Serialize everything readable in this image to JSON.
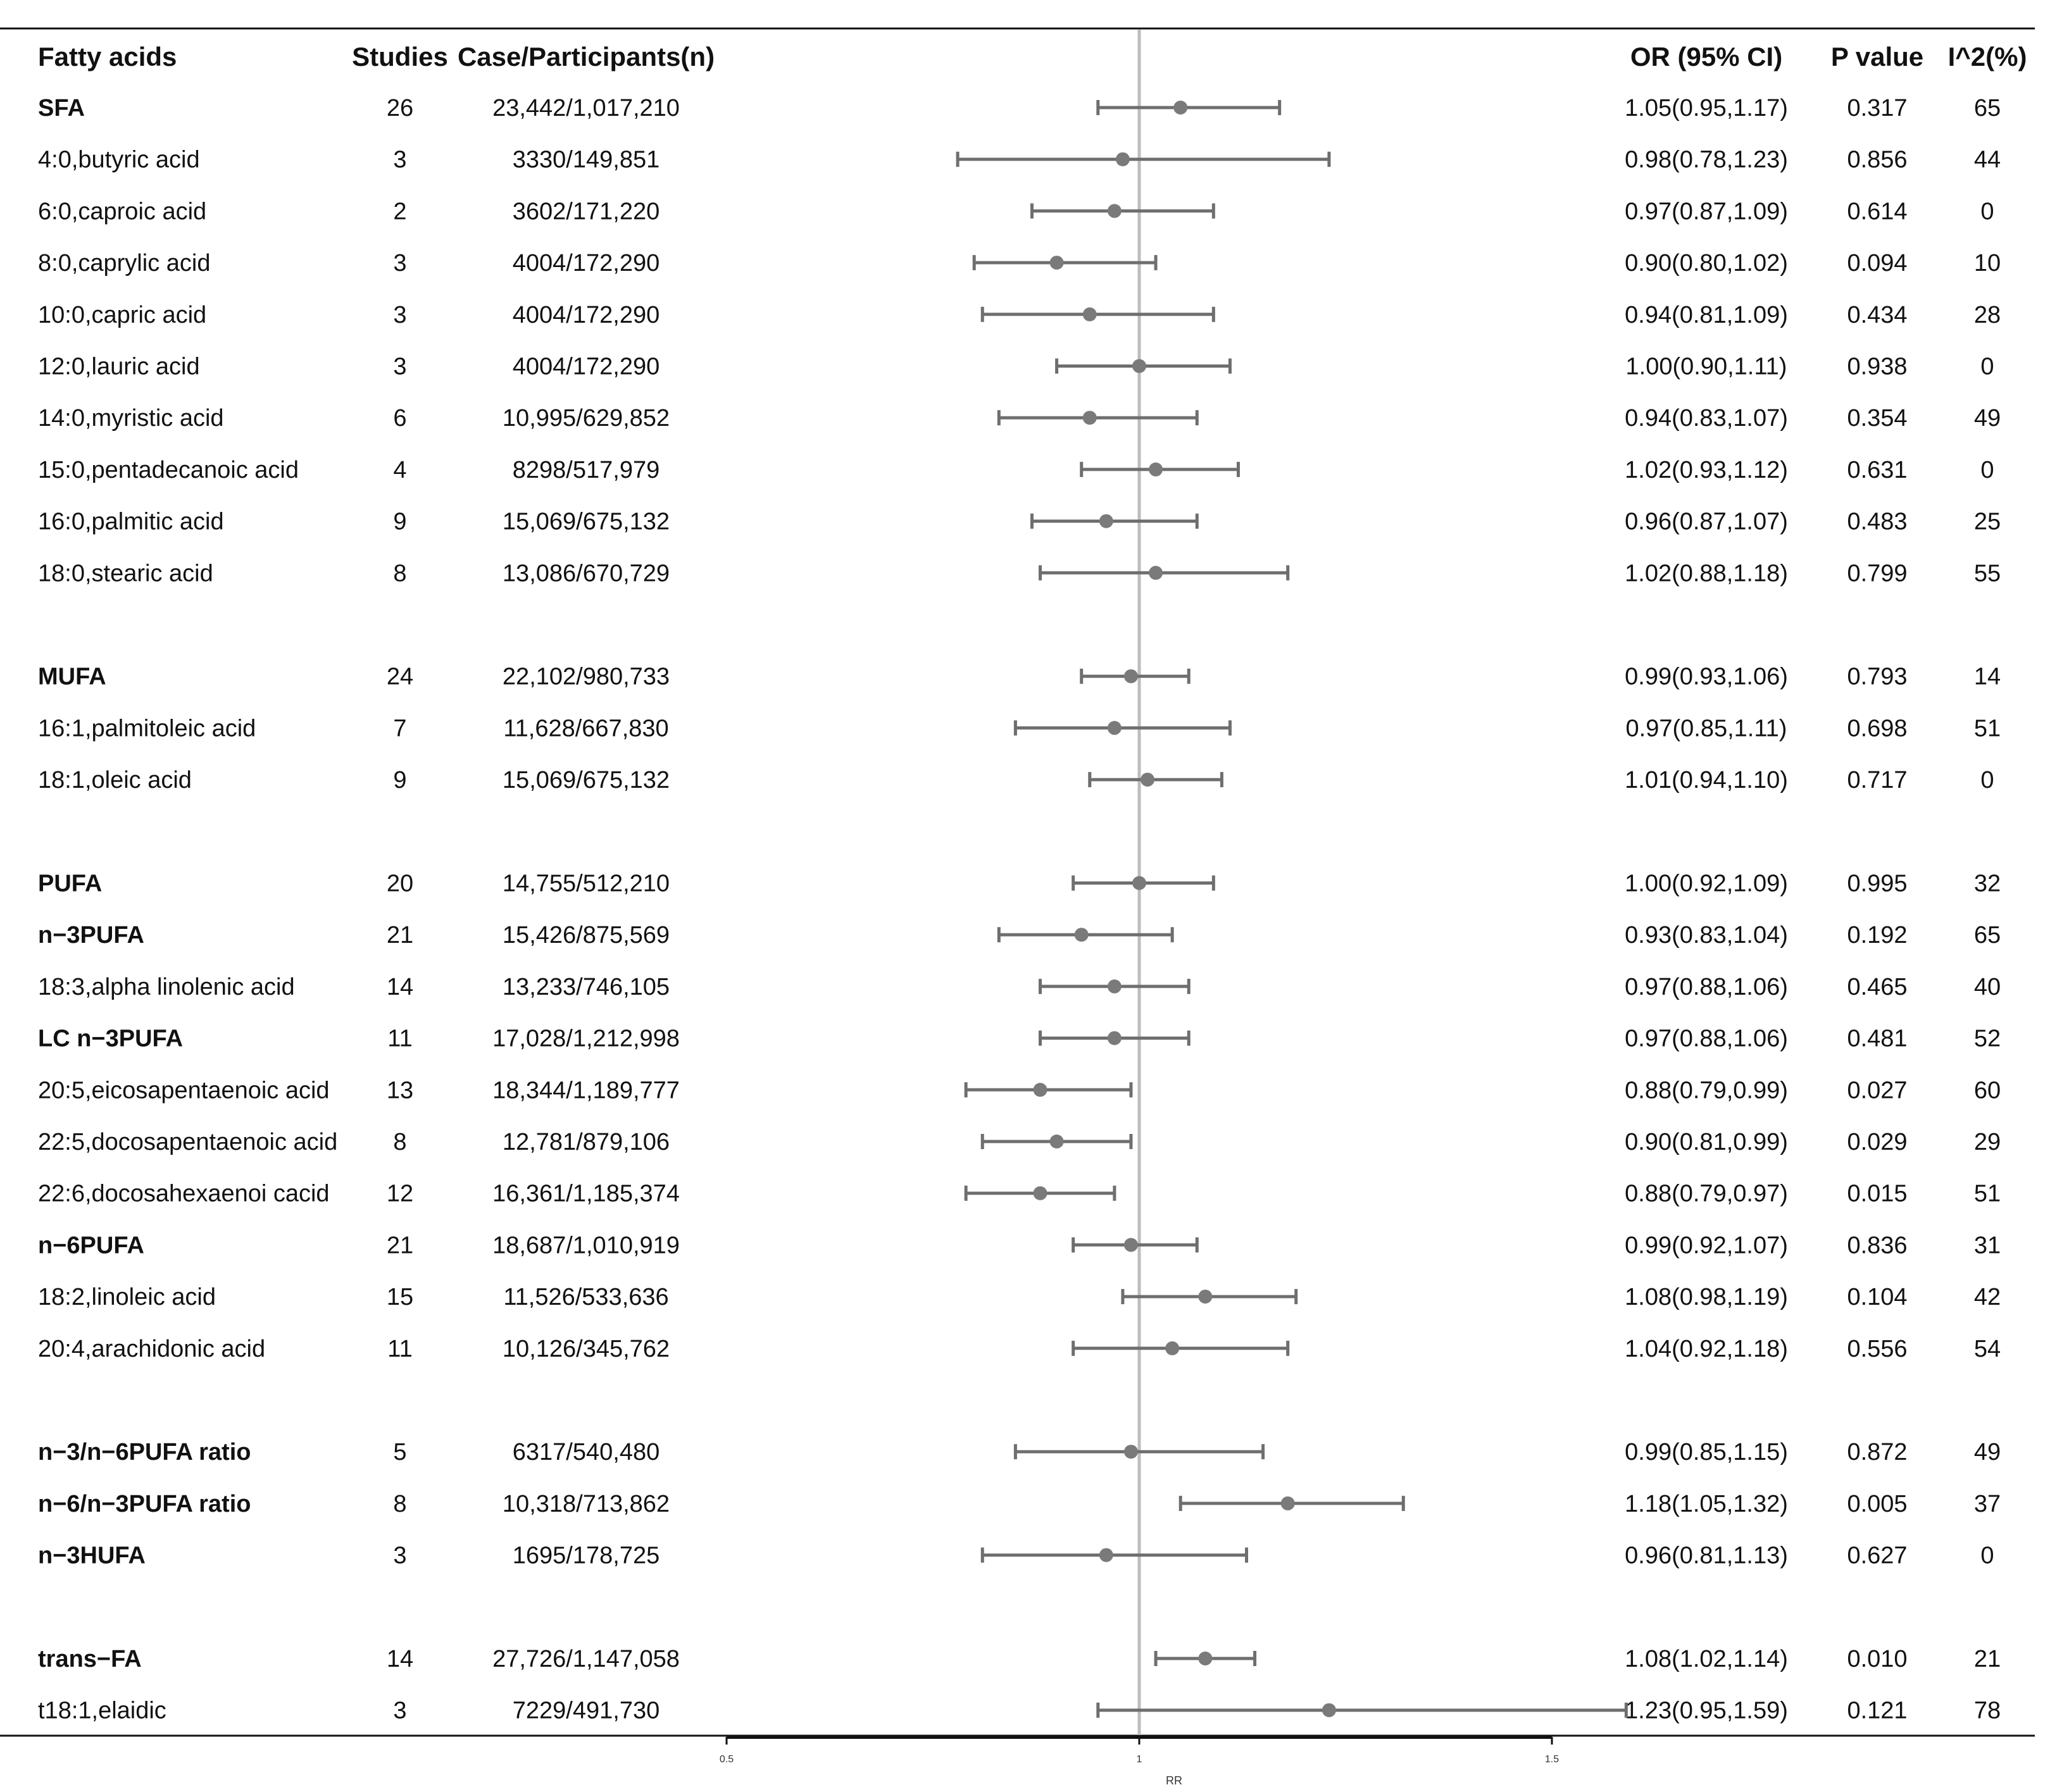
{
  "chart_data": {
    "type": "forest",
    "columns": {
      "name": "Fatty acids",
      "studies": "Studies",
      "cases": "Case/Participants(n)",
      "or": "OR  (95%  CI)",
      "p": "P value",
      "i2": "I^2(%)"
    },
    "xlabel": "RR",
    "xlim": [
      0.5,
      1.5
    ],
    "xticks": [
      "0.5",
      "1",
      "1.5"
    ],
    "reference_line": 1,
    "rows": [
      {
        "name": "SFA",
        "bold": true,
        "studies": "26",
        "cases": "23,442/1,017,210",
        "or": "1.05(0.95,1.17)",
        "p": "0.317",
        "i2": "65",
        "est": 1.05,
        "lo": 0.95,
        "hi": 1.17
      },
      {
        "name": "4:0,butyric acid",
        "bold": false,
        "studies": "3",
        "cases": "3330/149,851",
        "or": "0.98(0.78,1.23)",
        "p": "0.856",
        "i2": "44",
        "est": 0.98,
        "lo": 0.78,
        "hi": 1.23
      },
      {
        "name": "6:0,caproic acid",
        "bold": false,
        "studies": "2",
        "cases": "3602/171,220",
        "or": "0.97(0.87,1.09)",
        "p": "0.614",
        "i2": "0",
        "est": 0.97,
        "lo": 0.87,
        "hi": 1.09
      },
      {
        "name": "8:0,caprylic acid",
        "bold": false,
        "studies": "3",
        "cases": "4004/172,290",
        "or": "0.90(0.80,1.02)",
        "p": "0.094",
        "i2": "10",
        "est": 0.9,
        "lo": 0.8,
        "hi": 1.02
      },
      {
        "name": "10:0,capric acid",
        "bold": false,
        "studies": "3",
        "cases": "4004/172,290",
        "or": "0.94(0.81,1.09)",
        "p": "0.434",
        "i2": "28",
        "est": 0.94,
        "lo": 0.81,
        "hi": 1.09
      },
      {
        "name": "12:0,lauric acid",
        "bold": false,
        "studies": "3",
        "cases": "4004/172,290",
        "or": "1.00(0.90,1.11)",
        "p": "0.938",
        "i2": "0",
        "est": 1.0,
        "lo": 0.9,
        "hi": 1.11
      },
      {
        "name": "14:0,myristic acid",
        "bold": false,
        "studies": "6",
        "cases": "10,995/629,852",
        "or": "0.94(0.83,1.07)",
        "p": "0.354",
        "i2": "49",
        "est": 0.94,
        "lo": 0.83,
        "hi": 1.07
      },
      {
        "name": "15:0,pentadecanoic acid",
        "bold": false,
        "studies": "4",
        "cases": "8298/517,979",
        "or": "1.02(0.93,1.12)",
        "p": "0.631",
        "i2": "0",
        "est": 1.02,
        "lo": 0.93,
        "hi": 1.12
      },
      {
        "name": "16:0,palmitic acid",
        "bold": false,
        "studies": "9",
        "cases": "15,069/675,132",
        "or": "0.96(0.87,1.07)",
        "p": "0.483",
        "i2": "25",
        "est": 0.96,
        "lo": 0.87,
        "hi": 1.07
      },
      {
        "name": "18:0,stearic acid",
        "bold": false,
        "studies": "8",
        "cases": "13,086/670,729",
        "or": "1.02(0.88,1.18)",
        "p": "0.799",
        "i2": "55",
        "est": 1.02,
        "lo": 0.88,
        "hi": 1.18
      },
      {
        "spacer": true
      },
      {
        "name": "MUFA",
        "bold": true,
        "studies": "24",
        "cases": "22,102/980,733",
        "or": "0.99(0.93,1.06)",
        "p": "0.793",
        "i2": "14",
        "est": 0.99,
        "lo": 0.93,
        "hi": 1.06
      },
      {
        "name": "16:1,palmitoleic acid",
        "bold": false,
        "studies": "7",
        "cases": "11,628/667,830",
        "or": "0.97(0.85,1.11)",
        "p": "0.698",
        "i2": "51",
        "est": 0.97,
        "lo": 0.85,
        "hi": 1.11
      },
      {
        "name": "18:1,oleic acid",
        "bold": false,
        "studies": "9",
        "cases": "15,069/675,132",
        "or": "1.01(0.94,1.10)",
        "p": "0.717",
        "i2": "0",
        "est": 1.01,
        "lo": 0.94,
        "hi": 1.1
      },
      {
        "spacer": true
      },
      {
        "name": "PUFA",
        "bold": true,
        "studies": "20",
        "cases": "14,755/512,210",
        "or": "1.00(0.92,1.09)",
        "p": "0.995",
        "i2": "32",
        "est": 1.0,
        "lo": 0.92,
        "hi": 1.09
      },
      {
        "name": "n−3PUFA",
        "bold": true,
        "studies": "21",
        "cases": "15,426/875,569",
        "or": "0.93(0.83,1.04)",
        "p": "0.192",
        "i2": "65",
        "est": 0.93,
        "lo": 0.83,
        "hi": 1.04
      },
      {
        "name": "18:3,alpha linolenic acid",
        "bold": false,
        "studies": "14",
        "cases": "13,233/746,105",
        "or": "0.97(0.88,1.06)",
        "p": "0.465",
        "i2": "40",
        "est": 0.97,
        "lo": 0.88,
        "hi": 1.06
      },
      {
        "name": "LC n−3PUFA",
        "bold": true,
        "studies": "11",
        "cases": "17,028/1,212,998",
        "or": "0.97(0.88,1.06)",
        "p": "0.481",
        "i2": "52",
        "est": 0.97,
        "lo": 0.88,
        "hi": 1.06
      },
      {
        "name": "20:5,eicosapentaenoic acid",
        "bold": false,
        "studies": "13",
        "cases": "18,344/1,189,777",
        "or": "0.88(0.79,0.99)",
        "p": "0.027",
        "i2": "60",
        "est": 0.88,
        "lo": 0.79,
        "hi": 0.99
      },
      {
        "name": "22:5,docosapentaenoic acid",
        "bold": false,
        "studies": "8",
        "cases": "12,781/879,106",
        "or": "0.90(0.81,0.99)",
        "p": "0.029",
        "i2": "29",
        "est": 0.9,
        "lo": 0.81,
        "hi": 0.99
      },
      {
        "name": "22:6,docosahexaenoi cacid",
        "bold": false,
        "studies": "12",
        "cases": "16,361/1,185,374",
        "or": "0.88(0.79,0.97)",
        "p": "0.015",
        "i2": "51",
        "est": 0.88,
        "lo": 0.79,
        "hi": 0.97
      },
      {
        "name": "n−6PUFA",
        "bold": true,
        "studies": "21",
        "cases": "18,687/1,010,919",
        "or": "0.99(0.92,1.07)",
        "p": "0.836",
        "i2": "31",
        "est": 0.99,
        "lo": 0.92,
        "hi": 1.07
      },
      {
        "name": "18:2,linoleic acid",
        "bold": false,
        "studies": "15",
        "cases": "11,526/533,636",
        "or": "1.08(0.98,1.19)",
        "p": "0.104",
        "i2": "42",
        "est": 1.08,
        "lo": 0.98,
        "hi": 1.19
      },
      {
        "name": "20:4,arachidonic acid",
        "bold": false,
        "studies": "11",
        "cases": "10,126/345,762",
        "or": "1.04(0.92,1.18)",
        "p": "0.556",
        "i2": "54",
        "est": 1.04,
        "lo": 0.92,
        "hi": 1.18
      },
      {
        "spacer": true
      },
      {
        "name": "n−3/n−6PUFA ratio",
        "bold": true,
        "studies": "5",
        "cases": "6317/540,480",
        "or": "0.99(0.85,1.15)",
        "p": "0.872",
        "i2": "49",
        "est": 0.99,
        "lo": 0.85,
        "hi": 1.15
      },
      {
        "name": "n−6/n−3PUFA ratio",
        "bold": true,
        "studies": "8",
        "cases": "10,318/713,862",
        "or": "1.18(1.05,1.32)",
        "p": "0.005",
        "i2": "37",
        "est": 1.18,
        "lo": 1.05,
        "hi": 1.32
      },
      {
        "name": "n−3HUFA",
        "bold": true,
        "studies": "3",
        "cases": "1695/178,725",
        "or": "0.96(0.81,1.13)",
        "p": "0.627",
        "i2": "0",
        "est": 0.96,
        "lo": 0.81,
        "hi": 1.13
      },
      {
        "spacer": true
      },
      {
        "name": "trans−FA",
        "bold": true,
        "studies": "14",
        "cases": "27,726/1,147,058",
        "or": "1.08(1.02,1.14)",
        "p": "0.010",
        "i2": "21",
        "est": 1.08,
        "lo": 1.02,
        "hi": 1.14
      },
      {
        "name": "t18:1,elaidic",
        "bold": false,
        "studies": "3",
        "cases": "7229/491,730",
        "or": "1.23(0.95,1.59)",
        "p": "0.121",
        "i2": "78",
        "est": 1.23,
        "lo": 0.95,
        "hi": 1.59
      }
    ]
  },
  "colors": {
    "marker": "#7a7a7a",
    "ci_line": "#6e6e6e",
    "reference_line": "#bdbdbd",
    "rule": "#111111",
    "text": "#111111"
  }
}
